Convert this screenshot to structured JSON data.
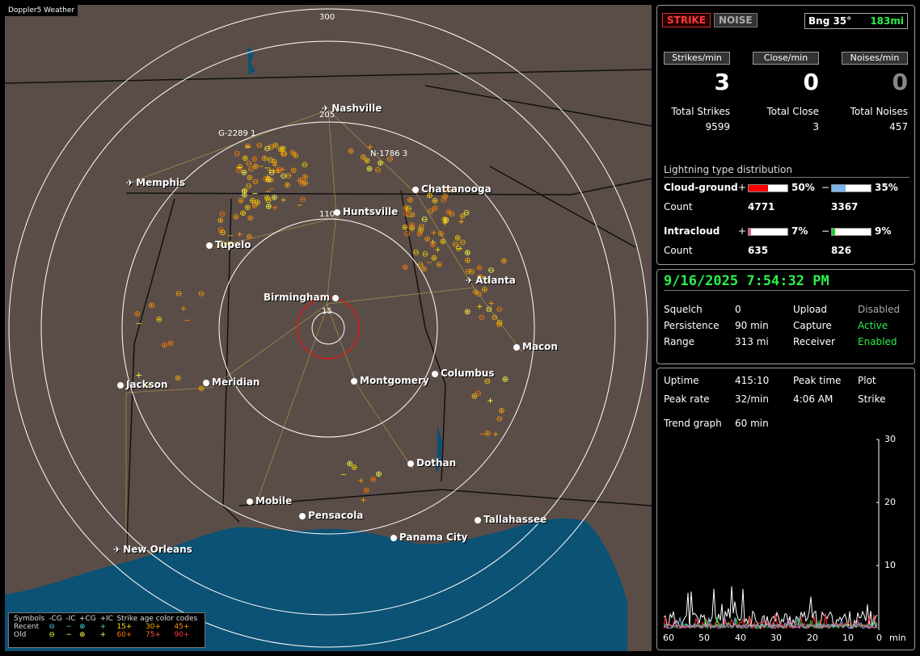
{
  "map": {
    "title": "Doppler5 Weather",
    "range_labels": [
      "300",
      "205",
      "110",
      "15"
    ],
    "cluster_tags": [
      "G-2289 1",
      "N-1786 3"
    ],
    "cities": [
      {
        "name": "Nashville",
        "airport": true
      },
      {
        "name": "Memphis",
        "airport": true
      },
      {
        "name": "Chattanooga",
        "airport": false
      },
      {
        "name": "Huntsville",
        "airport": false
      },
      {
        "name": "Tupelo",
        "airport": false
      },
      {
        "name": "Atlanta",
        "airport": true
      },
      {
        "name": "Birmingham",
        "airport": false
      },
      {
        "name": "Macon",
        "airport": false
      },
      {
        "name": "Jackson",
        "airport": false
      },
      {
        "name": "Meridian",
        "airport": false
      },
      {
        "name": "Montgomery",
        "airport": false
      },
      {
        "name": "Columbus",
        "airport": false
      },
      {
        "name": "Dothan",
        "airport": false
      },
      {
        "name": "Mobile",
        "airport": false
      },
      {
        "name": "Pensacola",
        "airport": false
      },
      {
        "name": "Tallahassee",
        "airport": false
      },
      {
        "name": "Panama City",
        "airport": false
      },
      {
        "name": "New Orleans",
        "airport": true
      }
    ],
    "legend": {
      "head": [
        "Symbols",
        "-CG",
        "-IC",
        "+CG",
        "+IC",
        "Strike age color codes"
      ],
      "recent_label": "Recent",
      "old_label": "Old",
      "recent_ages": [
        "15+",
        "30+",
        "45+"
      ],
      "old_ages": [
        "60+",
        "75+",
        "90+"
      ]
    }
  },
  "toolbar": {
    "strike_label": "STRIKE",
    "noise_label": "NOISE",
    "bearing": "Bng 35°",
    "distance": "183mi"
  },
  "rates": {
    "strikes_label": "Strikes/min",
    "strikes_value": "3",
    "close_label": "Close/min",
    "close_value": "0",
    "noises_label": "Noises/min",
    "noises_value": "0"
  },
  "totals": {
    "strikes_label": "Total Strikes",
    "strikes_value": "9599",
    "close_label": "Total Close",
    "close_value": "3",
    "noises_label": "Total Noises",
    "noises_value": "457"
  },
  "distribution": {
    "title": "Lightning type distribution",
    "cg_label": "Cloud-ground",
    "cg_pos_pct": "50%",
    "cg_neg_pct": "35%",
    "cg_pos_frac": 0.5,
    "cg_neg_frac": 0.35,
    "count_label": "Count",
    "cg_pos_count": "4771",
    "cg_neg_count": "3367",
    "ic_label": "Intracloud",
    "ic_pos_pct": "7%",
    "ic_neg_pct": "9%",
    "ic_pos_frac": 0.07,
    "ic_neg_frac": 0.09,
    "ic_pos_count": "635",
    "ic_neg_count": "826",
    "plus": "+",
    "minus": "−"
  },
  "status": {
    "datetime": "9/16/2025 7:54:32 PM",
    "squelch_label": "Squelch",
    "squelch_value": "0",
    "persistence_label": "Persistence",
    "persistence_value": "90 min",
    "range_label": "Range",
    "range_value": "313 mi",
    "upload_label": "Upload",
    "upload_value": "Disabled",
    "capture_label": "Capture",
    "capture_value": "Active",
    "receiver_label": "Receiver",
    "receiver_value": "Enabled"
  },
  "trend": {
    "uptime_label": "Uptime",
    "uptime_value": "415:10",
    "peak_time_label": "Peak time",
    "peak_time_value": "4:06 AM",
    "plot_label": "Plot",
    "plot_value": "Strike",
    "peak_rate_label": "Peak rate",
    "peak_rate_value": "32/min",
    "trend_label": "Trend graph",
    "trend_value": "60 min",
    "y_ticks": [
      "30",
      "20",
      "10"
    ],
    "x_ticks": [
      "60",
      "50",
      "40",
      "30",
      "20",
      "10",
      "0"
    ],
    "x_unit": "min"
  },
  "colors": {
    "green": "#2cf04a",
    "cg_pos": "#ff0000",
    "cg_neg": "#7ab6ee",
    "ic_pos": "#e0609a",
    "ic_neg": "#22cc22"
  }
}
